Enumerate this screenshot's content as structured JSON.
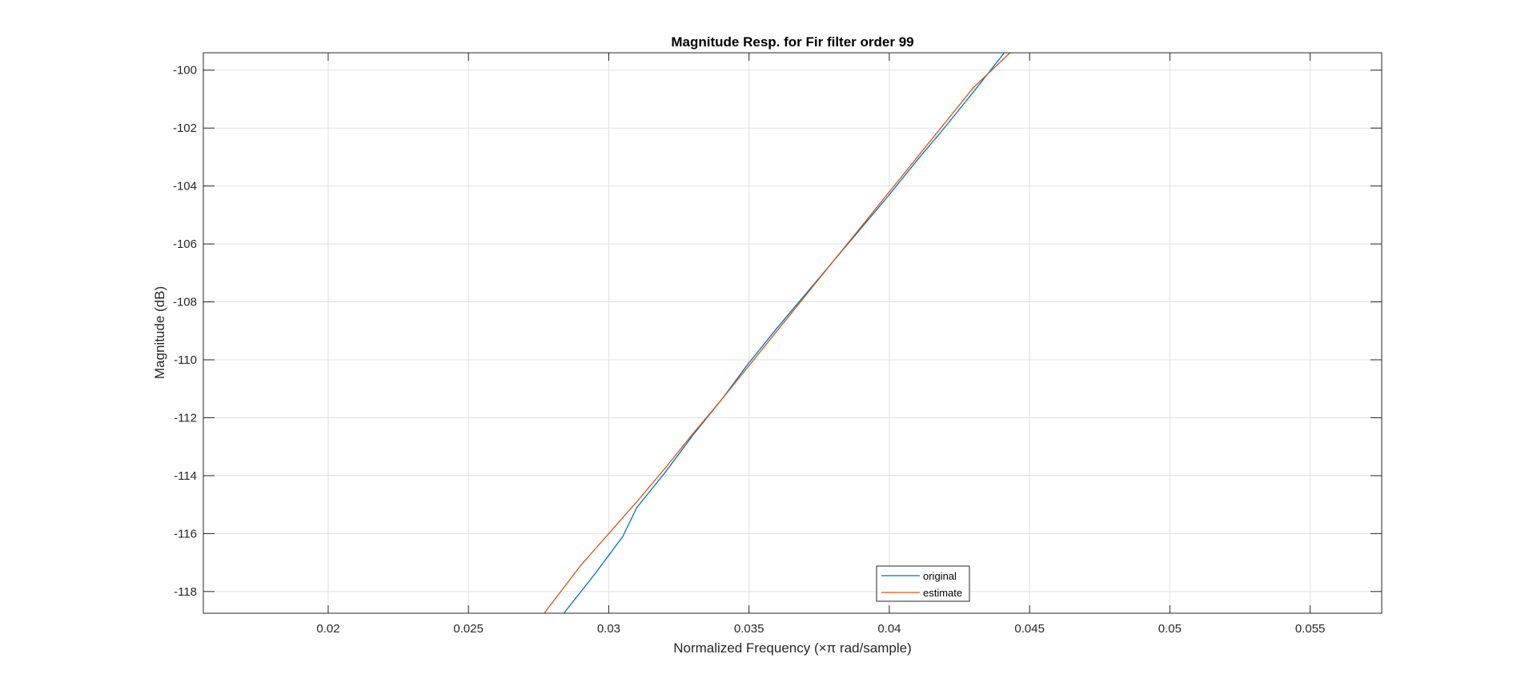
{
  "chart_data": {
    "type": "line",
    "title": "Magnitude Resp. for Fir filter order 99",
    "xlabel": "Normalized Frequency (×π rad/sample)",
    "ylabel": "Magnitude (dB)",
    "xlim": [
      0.01555,
      0.05755
    ],
    "ylim": [
      -118.75,
      -99.4
    ],
    "xticks": [
      0.02,
      0.025,
      0.03,
      0.035,
      0.04,
      0.045,
      0.05,
      0.055
    ],
    "xtick_labels": [
      "0.02",
      "0.025",
      "0.03",
      "0.035",
      "0.04",
      "0.045",
      "0.05",
      "0.055"
    ],
    "yticks": [
      -100,
      -102,
      -104,
      -106,
      -108,
      -110,
      -112,
      -114,
      -116,
      -118
    ],
    "ytick_labels": [
      "-100",
      "-102",
      "-104",
      "-106",
      "-108",
      "-110",
      "-112",
      "-114",
      "-116",
      "-118"
    ],
    "grid": true,
    "legend_position": "bottom-center",
    "series": [
      {
        "name": "original",
        "color": "#0072BD",
        "x": [
          0.0284,
          0.0295,
          0.0305,
          0.031,
          0.032,
          0.033,
          0.034,
          0.035,
          0.036,
          0.037,
          0.038,
          0.039,
          0.04,
          0.041,
          0.042,
          0.043,
          0.0441
        ],
        "y": [
          -118.75,
          -117.4,
          -116.1,
          -115.1,
          -113.9,
          -112.6,
          -111.4,
          -110.1,
          -108.9,
          -107.75,
          -106.6,
          -105.45,
          -104.3,
          -103.1,
          -101.95,
          -100.75,
          -99.4
        ]
      },
      {
        "name": "estimate",
        "color": "#D95319",
        "x": [
          0.0277,
          0.029,
          0.03,
          0.031,
          0.032,
          0.033,
          0.034,
          0.035,
          0.036,
          0.037,
          0.038,
          0.039,
          0.04,
          0.041,
          0.042,
          0.043,
          0.0443
        ],
        "y": [
          -118.75,
          -117.1,
          -116.0,
          -114.9,
          -113.75,
          -112.55,
          -111.4,
          -110.2,
          -109.0,
          -107.8,
          -106.6,
          -105.4,
          -104.2,
          -103.0,
          -101.8,
          -100.6,
          -99.4
        ]
      }
    ]
  }
}
